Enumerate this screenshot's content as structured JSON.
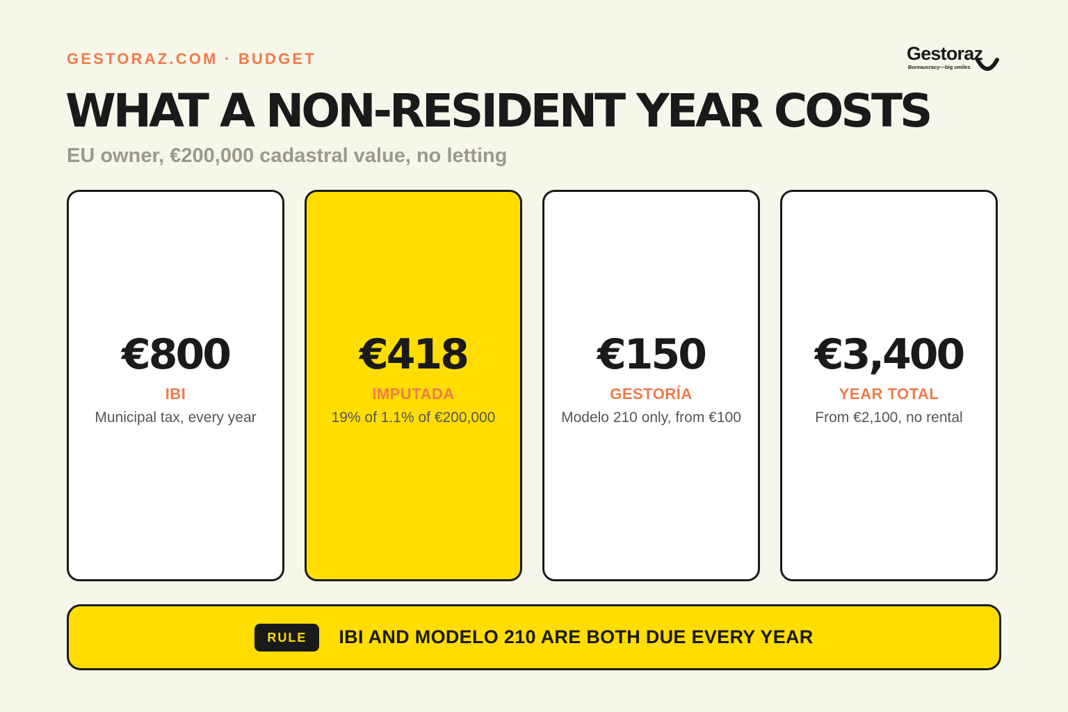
{
  "header": {
    "eyebrow": "GESTORAZ.COM · BUDGET",
    "title": "WHAT A NON-RESIDENT YEAR COSTS",
    "subtitle": "EU owner, €200,000 cadastral value, no letting"
  },
  "logo": {
    "name": "Gestoraz",
    "tagline": "Bureaucracy—big smiles",
    "icon": "smile-icon"
  },
  "cards": [
    {
      "value": "€800",
      "label": "IBI",
      "description": "Municipal tax, every year",
      "highlighted": false
    },
    {
      "value": "€418",
      "label": "IMPUTADA",
      "description": "19% of 1.1% of €200,000",
      "highlighted": true
    },
    {
      "value": "€150",
      "label": "GESTORÍA",
      "description": "Modelo 210 only, from €100",
      "highlighted": false
    },
    {
      "value": "€3,400",
      "label": "YEAR TOTAL",
      "description": "From €2,100, no rental",
      "highlighted": false
    }
  ],
  "rule": {
    "badge": "RULE",
    "text": "IBI AND MODELO 210 ARE BOTH DUE EVERY YEAR"
  },
  "colors": {
    "background": "#f7f6ea",
    "accent_orange": "#f07a4a",
    "accent_yellow": "#ffdd00",
    "ink": "#1a1a1a",
    "muted": "#9a9a8a"
  }
}
